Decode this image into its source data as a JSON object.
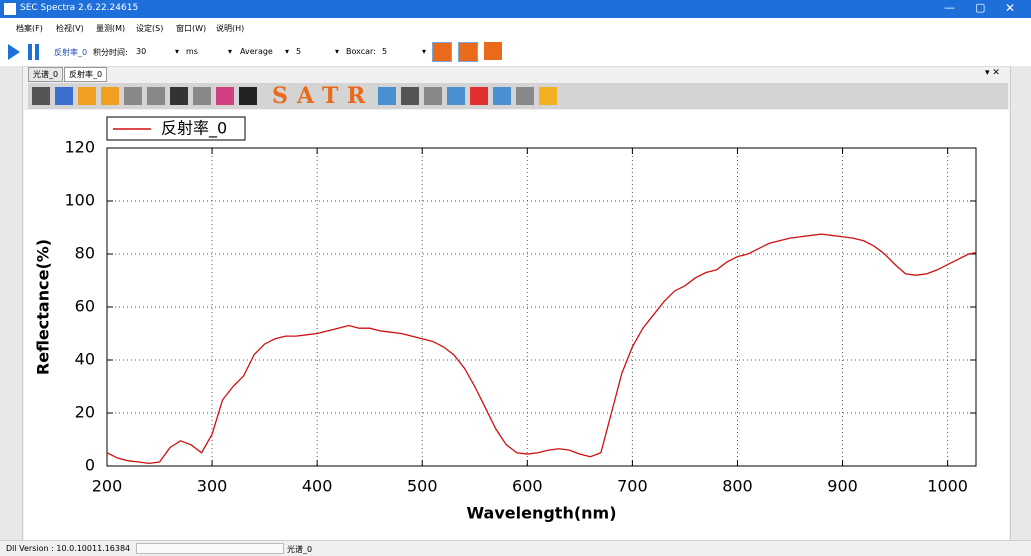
{
  "window": {
    "title": "SEC Spectra 2.6.22.24615"
  },
  "menu": [
    "档案(F)",
    "检视(V)",
    "量测(M)",
    "设定(S)",
    "窗口(W)",
    "说明(H)"
  ],
  "toolbar": {
    "mode": "反射率_0",
    "integration_label": "积分时间:",
    "integration_value": "30",
    "integration_unit": "ms",
    "average_label": "Average",
    "average_value": "5",
    "boxcar_label": "Boxcar:",
    "boxcar_value": "5"
  },
  "tabs": [
    "光谱_0",
    "反射率_0"
  ],
  "icon_letters": [
    "S",
    "A",
    "T",
    "R"
  ],
  "status": {
    "version": "Dll Version : 10.0.10011.16384",
    "spectrum": "光谱_0"
  },
  "chart_data": {
    "type": "line",
    "x_label": "Wavelength(nm)",
    "y_label": "Reflectance(%)",
    "x": [
      200,
      210,
      220,
      230,
      240,
      250,
      260,
      270,
      280,
      290,
      300,
      310,
      320,
      330,
      340,
      350,
      360,
      370,
      380,
      390,
      400,
      410,
      420,
      430,
      440,
      450,
      460,
      470,
      480,
      490,
      500,
      510,
      520,
      530,
      540,
      550,
      560,
      570,
      580,
      590,
      600,
      610,
      620,
      630,
      640,
      650,
      660,
      670,
      680,
      690,
      700,
      710,
      720,
      730,
      740,
      750,
      760,
      770,
      780,
      790,
      800,
      810,
      820,
      830,
      840,
      850,
      860,
      870,
      880,
      890,
      900,
      910,
      920,
      930,
      940,
      950,
      960,
      970,
      980,
      990,
      1000,
      1010,
      1020,
      1027
    ],
    "series": [
      {
        "name": "反射率_0",
        "color": "#d01010",
        "values": [
          5,
          3,
          2,
          1.5,
          1,
          1.5,
          7,
          9.5,
          8,
          5,
          12,
          25,
          30,
          34,
          42,
          46,
          48,
          49,
          49,
          49.5,
          50,
          51,
          52,
          53,
          52,
          52,
          51,
          50.5,
          50,
          49,
          48,
          47,
          45,
          42,
          37,
          30,
          22,
          14,
          8,
          5,
          4.5,
          5,
          6,
          6.5,
          6,
          4.5,
          3.5,
          5,
          20,
          35,
          45,
          52,
          57,
          62,
          66,
          68,
          71,
          73,
          74,
          77,
          79,
          80,
          82,
          84,
          85,
          86,
          86.5,
          87,
          87.5,
          87,
          86.5,
          86,
          85,
          83,
          80,
          76,
          72.5,
          72,
          72.5,
          74,
          76,
          78,
          80,
          80.5
        ]
      }
    ],
    "xlim": [
      200,
      1027
    ],
    "ylim": [
      0,
      120
    ],
    "xticks": [
      200,
      300,
      400,
      500,
      600,
      700,
      800,
      900,
      1000
    ],
    "yticks": [
      0,
      20,
      40,
      60,
      80,
      100,
      120
    ],
    "grid": true,
    "legend": "top-left"
  }
}
